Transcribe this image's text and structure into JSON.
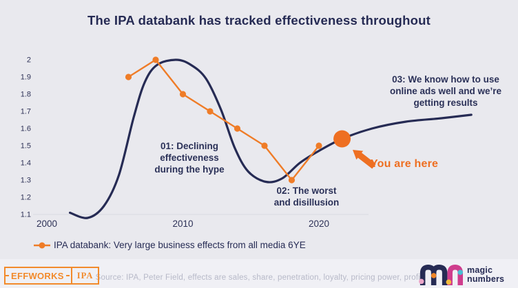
{
  "title": "The IPA databank has tracked effectiveness throughout",
  "colors": {
    "background": "#e9e9ee",
    "footer_background": "#f0f0f5",
    "navy": "#262b54",
    "orange": "#ef7c27",
    "highlight_orange": "#ee6f22",
    "grid": "#d9dae3",
    "source_text": "#b7b9c8",
    "effworks_orange": "#f28a2b"
  },
  "chart_data": {
    "type": "line",
    "title": "The IPA databank has tracked effectiveness throughout",
    "xlabel": "",
    "ylabel": "",
    "ylim": [
      1.1,
      2.0
    ],
    "grid": "single light baseline gridline at y=1.1 only",
    "legend_position": "bottom-left",
    "x_ticks": [
      {
        "v": 2000,
        "label": "2000"
      },
      {
        "v": 2010,
        "label": "2010"
      },
      {
        "v": 2020,
        "label": "2020"
      }
    ],
    "y_ticks": [
      {
        "v": 2.0,
        "label": "2"
      },
      {
        "v": 1.9,
        "label": "1.9"
      },
      {
        "v": 1.8,
        "label": "1.8"
      },
      {
        "v": 1.7,
        "label": "1.7"
      },
      {
        "v": 1.6,
        "label": "1.6"
      },
      {
        "v": 1.5,
        "label": "1.5"
      },
      {
        "v": 1.4,
        "label": "1.4"
      },
      {
        "v": 1.3,
        "label": "1.3"
      },
      {
        "v": 1.2,
        "label": "1.2"
      },
      {
        "v": 1.1,
        "label": "1.1"
      }
    ],
    "series": [
      {
        "id": "ipa_databank",
        "name": "IPA databank: Very large business effects from all media 6YE",
        "type": "line+markers",
        "color": "#ef7c27",
        "x": [
          2006,
          2008,
          2010,
          2012,
          2014,
          2016,
          2018,
          2020
        ],
        "y": [
          1.9,
          2.0,
          1.8,
          1.7,
          1.6,
          1.5,
          1.3,
          1.5
        ]
      },
      {
        "id": "hype_curve",
        "name": "Hype-cycle curve (unlabelled)",
        "type": "smooth-line",
        "color": "#262b54",
        "x": [
          2001.7,
          2003,
          2004.2,
          2005.3,
          2006.4,
          2007.2,
          2008.1,
          2009.5,
          2010.6,
          2011.7,
          2012.8,
          2013.8,
          2014.8,
          2016.1,
          2017.3,
          2018.6,
          2020,
          2021.7,
          2023.9,
          2026.4,
          2029,
          2031.2
        ],
        "y": [
          1.11,
          1.08,
          1.15,
          1.33,
          1.67,
          1.87,
          1.97,
          2.0,
          1.97,
          1.89,
          1.71,
          1.49,
          1.35,
          1.29,
          1.31,
          1.4,
          1.47,
          1.54,
          1.6,
          1.64,
          1.66,
          1.68
        ]
      }
    ],
    "highlight_point": {
      "x": 2021.7,
      "y": 1.54,
      "label": "You are here",
      "color": "#ee6f22"
    },
    "annotations": [
      {
        "id": "01",
        "text": "01: Declining effectiveness during the hype"
      },
      {
        "id": "02",
        "text": "02: The worst and disillusion"
      },
      {
        "id": "03",
        "text": "03: We know how to use online ads well and we’re getting results"
      },
      {
        "id": "you-are-here",
        "text": "You are here"
      }
    ]
  },
  "legend": {
    "label": "IPA databank: Very large business effects from all media 6YE"
  },
  "footer": {
    "source": "Source: IPA, Peter Field, effects are sales, share, penetration, loyalty, pricing power, profit"
  },
  "logos": {
    "effworks": {
      "label": "EFFWORKS",
      "ipa_label": "IPA"
    },
    "magic_numbers": {
      "line1": "magic",
      "line2": "numbers",
      "mark_colors": {
        "navy": "#262b54",
        "magenta": "#cf3d8d",
        "pink": "#eba6c9",
        "orange": "#f08526",
        "yellow": "#f3bc3c",
        "teal": "#49bfd4"
      }
    }
  }
}
